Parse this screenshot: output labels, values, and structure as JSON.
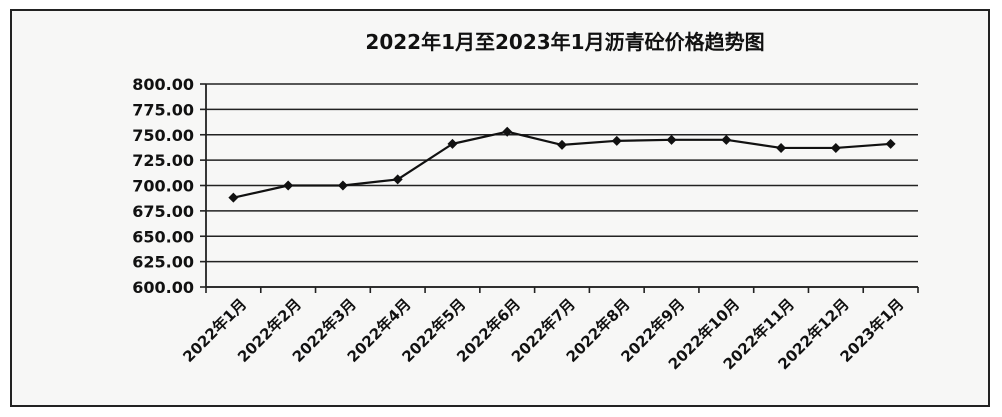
{
  "chart_data": {
    "type": "line",
    "title": "2022年1月至2023年1月沥青砼价格趋势图",
    "xlabel": "",
    "ylabel": "",
    "categories": [
      "2022年1月",
      "2022年2月",
      "2022年3月",
      "2022年4月",
      "2022年5月",
      "2022年6月",
      "2022年7月",
      "2022年8月",
      "2022年9月",
      "2022年10月",
      "2022年11月",
      "2022年12月",
      "2023年1月"
    ],
    "series": [
      {
        "name": "",
        "values": [
          688,
          700,
          700,
          706,
          741,
          753,
          740,
          744,
          745,
          745,
          737,
          737,
          741
        ]
      }
    ],
    "ylim": [
      600,
      800
    ],
    "yticks": [
      "800.00",
      "775.00",
      "750.00",
      "725.00",
      "700.00",
      "675.00",
      "650.00",
      "625.00",
      "600.00"
    ],
    "grid": true,
    "legend": "none",
    "colors": {
      "line": "#111111",
      "grid": "#222222",
      "frame_bg": "#f7f7f6"
    }
  }
}
